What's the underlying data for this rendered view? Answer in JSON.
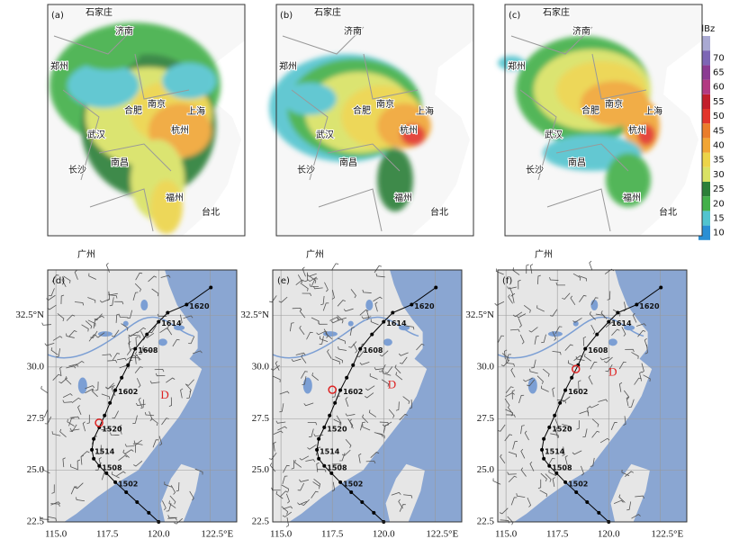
{
  "colorbar": {
    "title": "dBz",
    "levels": [
      10,
      15,
      20,
      25,
      30,
      35,
      40,
      45,
      50,
      55,
      60,
      65,
      70
    ],
    "colors": [
      "#2a8fd4",
      "#52c4cf",
      "#43b04a",
      "#2c7f38",
      "#d9e264",
      "#ecd449",
      "#f1a534",
      "#ea7d2b",
      "#e2352b",
      "#c21f2c",
      "#b23a82",
      "#8b3c92",
      "#7d66b5"
    ],
    "extend_color": "#a9a9d2"
  },
  "radar_panels": [
    {
      "label": "(a)",
      "cities": [
        "石家庄",
        "济南",
        "郑州",
        "合肥",
        "南京",
        "上海",
        "武汉",
        "杭州",
        "长沙",
        "南昌",
        "福州",
        "台北",
        "广州"
      ]
    },
    {
      "label": "(b)",
      "cities": [
        "石家庄",
        "济南",
        "郑州",
        "合肥",
        "南京",
        "上海",
        "武汉",
        "杭州",
        "长沙",
        "南昌",
        "福州",
        "台北",
        "广州"
      ]
    },
    {
      "label": "(c)",
      "cities": [
        "石家庄",
        "济南",
        "郑州",
        "合肥",
        "南京",
        "上海",
        "武汉",
        "杭州",
        "长沙",
        "南昌",
        "福州",
        "台北",
        "广州"
      ]
    }
  ],
  "wind_panels": [
    {
      "label": "(d)",
      "center": {
        "lon": 117.1,
        "lat": 27.3
      },
      "low_label": "D",
      "low": {
        "lon": 120.3,
        "lat": 28.6
      }
    },
    {
      "label": "(e)",
      "center": {
        "lon": 117.5,
        "lat": 28.9
      },
      "low_label": "D",
      "low": {
        "lon": 120.4,
        "lat": 29.1
      }
    },
    {
      "label": "(f)",
      "center": {
        "lon": 118.4,
        "lat": 29.9
      },
      "low_label": "D",
      "low": {
        "lon": 120.2,
        "lat": 29.7
      }
    }
  ],
  "track": {
    "lon": [
      122.54,
      121.36,
      120.44,
      120.0,
      119.43,
      118.86,
      118.51,
      118.2,
      117.89,
      117.63,
      117.37,
      117.11,
      116.84,
      116.75,
      116.84,
      117.11,
      117.46,
      117.89,
      118.42,
      118.95,
      119.52,
      120.0
    ],
    "lat": [
      33.85,
      33.02,
      32.63,
      32.19,
      31.58,
      30.88,
      30.09,
      29.48,
      28.88,
      28.26,
      27.65,
      27.08,
      26.52,
      25.99,
      25.56,
      25.21,
      24.86,
      24.42,
      23.94,
      23.46,
      22.94,
      22.5
    ],
    "labels": [
      null,
      "1620",
      null,
      "1614",
      null,
      "1608",
      null,
      null,
      "1602",
      null,
      null,
      "1520",
      null,
      "1514",
      null,
      "1508",
      null,
      "1502",
      null,
      null,
      null,
      null
    ]
  },
  "xlim": [
    114.6,
    123.8
  ],
  "ylim": [
    22.5,
    34.7
  ],
  "xticks": [
    {
      "value": 115,
      "label": "115.0"
    },
    117.5,
    {
      "value": 120,
      "label": "120.0"
    },
    {
      "value": 122.5,
      "label": "122.5°E"
    }
  ],
  "yticks": [
    22.5,
    {
      "value": 25,
      "label": "25.0"
    },
    27.5,
    {
      "value": 30,
      "label": "30.0"
    },
    {
      "value": 32.5,
      "label": "32.5°N"
    }
  ]
}
